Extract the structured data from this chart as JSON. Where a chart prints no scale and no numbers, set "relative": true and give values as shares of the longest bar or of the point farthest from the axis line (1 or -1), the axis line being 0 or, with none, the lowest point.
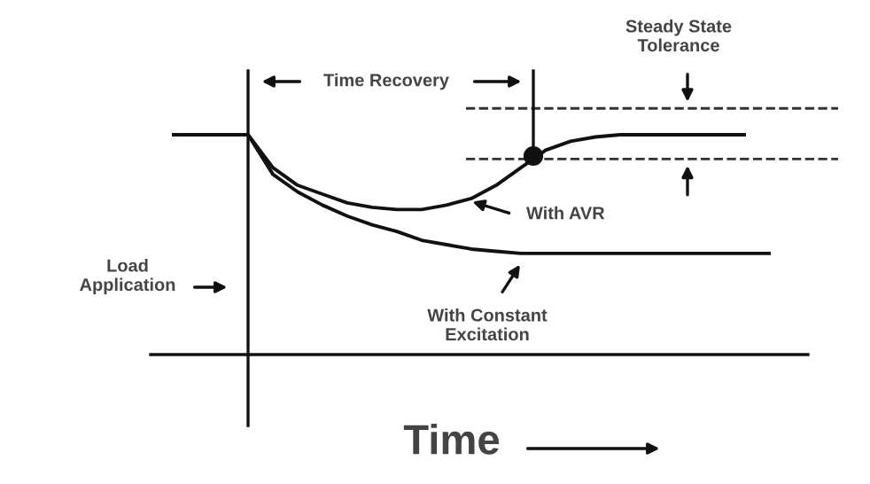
{
  "chart_data": {
    "type": "line",
    "relative": true,
    "xlabel": "Time",
    "categories": [
      null,
      null,
      null,
      null,
      null,
      null,
      null,
      null,
      null,
      null,
      null,
      null,
      null,
      null,
      null,
      null,
      null,
      null,
      null,
      null,
      null,
      null,
      null,
      null,
      null
    ],
    "series": [
      {
        "name": "With AVR",
        "color": "#111111",
        "values": [
          1.0,
          1.0,
          1.0,
          1.0,
          0.85,
          0.77,
          0.73,
          0.69,
          0.67,
          0.66,
          0.66,
          0.68,
          0.71,
          0.77,
          0.85,
          0.93,
          0.97,
          0.99,
          1.0,
          1.0,
          1.0,
          1.0,
          1.0,
          1.0,
          null
        ]
      },
      {
        "name": "With Constant\nExcitation",
        "color": "#111111",
        "values": [
          1.0,
          1.0,
          1.0,
          1.0,
          0.82,
          0.74,
          0.68,
          0.63,
          0.59,
          0.56,
          0.52,
          0.5,
          0.48,
          0.47,
          0.46,
          0.46,
          0.46,
          0.46,
          0.46,
          0.46,
          0.46,
          0.46,
          0.46,
          0.46,
          0.46
        ]
      }
    ],
    "ref_lines": [
      {
        "axis": "y",
        "value": 1.12,
        "label": "Steady State\nTolerance",
        "color": "#333333",
        "line_style": "dashed"
      },
      {
        "axis": "y",
        "value": 0.89,
        "color": "#333333",
        "line_style": "dashed"
      }
    ],
    "annotations": [
      "Time Recovery",
      "Load\nApplication"
    ],
    "marker": "none",
    "line_style": "solid"
  }
}
